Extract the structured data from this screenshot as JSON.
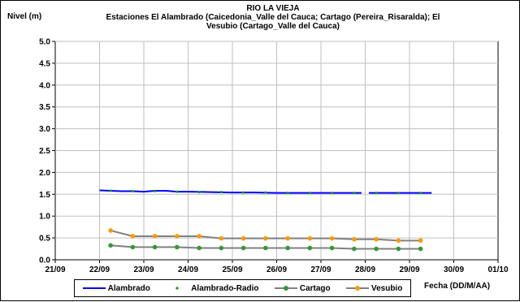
{
  "chart_data": {
    "type": "line",
    "title": "RIO LA VIEJA",
    "subtitle": "Estaciones El Alambrado (Caicedonia_Valle del Cauca; Cartago (Pereira_Risaralda);  El Vesubio (Cartago_Valle del Cauca)",
    "ylabel": "Nivel (m)",
    "xlabel": "Fecha (DD/M/AA)",
    "ylim": [
      0,
      5
    ],
    "y_ticks": [
      "0.0",
      "0.5",
      "1.0",
      "1.5",
      "2.0",
      "2.5",
      "3.0",
      "3.5",
      "4.0",
      "4.5",
      "5.0"
    ],
    "x_ticks": [
      "21/09",
      "22/09",
      "23/09",
      "24/09",
      "25/09",
      "26/09",
      "27/09",
      "28/09",
      "29/09",
      "30/09",
      "01/10"
    ],
    "xlim": [
      "2011-09-21",
      "2011-10-01"
    ],
    "grid": true,
    "legend": "bottom",
    "series": [
      {
        "name": "Alambrado",
        "color": "#0000ff",
        "style": "line",
        "x": [
          "2011-09-22 00:00",
          "2011-09-22 06:00",
          "2011-09-22 12:00",
          "2011-09-22 18:00",
          "2011-09-23 00:00",
          "2011-09-23 06:00",
          "2011-09-23 12:00",
          "2011-09-23 18:00",
          "2011-09-24 00:00",
          "2011-09-24 12:00",
          "2011-09-25 00:00",
          "2011-09-25 12:00",
          "2011-09-26 00:00",
          "2011-09-26 12:00",
          "2011-09-27 00:00",
          "2011-09-27 12:00",
          "2011-09-27 22:00"
        ],
        "values": [
          1.59,
          1.58,
          1.57,
          1.57,
          1.56,
          1.58,
          1.58,
          1.56,
          1.56,
          1.55,
          1.54,
          1.54,
          1.53,
          1.53,
          1.53,
          1.53,
          1.53
        ]
      },
      {
        "name": "Alambrado",
        "color": "#0000ff",
        "style": "line",
        "x": [
          "2011-09-28 02:00",
          "2011-09-28 12:00",
          "2011-09-29 00:00",
          "2011-09-29 12:00"
        ],
        "values": [
          1.53,
          1.53,
          1.53,
          1.53
        ]
      },
      {
        "name": "Alambrado-Radio",
        "color": "#00a000",
        "style": "dots",
        "x": [
          "2011-09-22 06:00",
          "2011-09-22 18:00",
          "2011-09-23 06:00",
          "2011-09-23 18:00",
          "2011-09-24 06:00",
          "2011-09-24 18:00",
          "2011-09-25 06:00",
          "2011-09-25 18:00",
          "2011-09-26 06:00",
          "2011-09-26 18:00",
          "2011-09-27 06:00",
          "2011-09-27 18:00",
          "2011-09-28 06:00",
          "2011-09-28 18:00",
          "2011-09-29 06:00"
        ],
        "values": [
          1.58,
          1.57,
          1.57,
          1.56,
          1.55,
          1.55,
          1.54,
          1.54,
          1.53,
          1.53,
          1.53,
          1.53,
          1.53,
          1.53,
          1.53
        ]
      },
      {
        "name": "Cartago",
        "color": "#339933",
        "style": "line-markers",
        "x": [
          "2011-09-22 06:00",
          "2011-09-22 18:00",
          "2011-09-23 06:00",
          "2011-09-23 18:00",
          "2011-09-24 06:00",
          "2011-09-24 18:00",
          "2011-09-25 06:00",
          "2011-09-25 18:00",
          "2011-09-26 06:00",
          "2011-09-26 18:00",
          "2011-09-27 06:00",
          "2011-09-27 18:00",
          "2011-09-28 06:00",
          "2011-09-28 18:00",
          "2011-09-29 06:00"
        ],
        "values": [
          0.33,
          0.29,
          0.29,
          0.29,
          0.27,
          0.27,
          0.27,
          0.27,
          0.27,
          0.27,
          0.27,
          0.25,
          0.25,
          0.25,
          0.25
        ]
      },
      {
        "name": "Vesubio",
        "color": "#ff9900",
        "style": "line-markers",
        "x": [
          "2011-09-22 06:00",
          "2011-09-22 18:00",
          "2011-09-23 06:00",
          "2011-09-23 18:00",
          "2011-09-24 06:00",
          "2011-09-24 18:00",
          "2011-09-25 06:00",
          "2011-09-25 18:00",
          "2011-09-26 06:00",
          "2011-09-26 18:00",
          "2011-09-27 06:00",
          "2011-09-27 18:00",
          "2011-09-28 06:00",
          "2011-09-28 18:00",
          "2011-09-29 06:00"
        ],
        "values": [
          0.67,
          0.54,
          0.54,
          0.54,
          0.54,
          0.49,
          0.49,
          0.49,
          0.49,
          0.49,
          0.49,
          0.47,
          0.47,
          0.44,
          0.44
        ]
      }
    ],
    "legend_entries": [
      {
        "label": "Alambrado",
        "color": "#0000ff",
        "marker": "line"
      },
      {
        "label": "Alambrado-Radio",
        "color": "#00a000",
        "marker": "dot"
      },
      {
        "label": "Cartago",
        "color": "#339933",
        "marker": "line-dot"
      },
      {
        "label": "Vesubio",
        "color": "#ff9900",
        "marker": "line-dot"
      }
    ]
  }
}
